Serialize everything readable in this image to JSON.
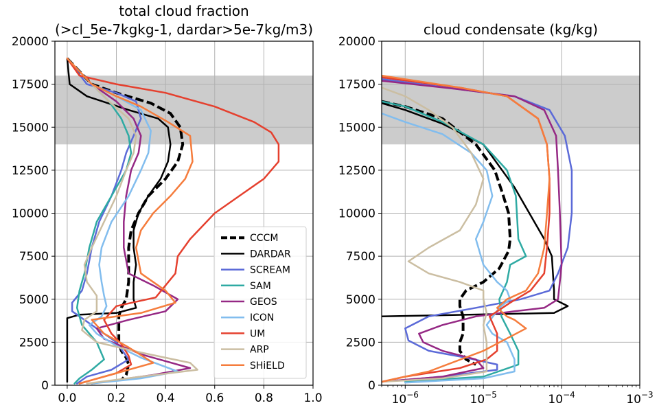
{
  "chart_data": [
    {
      "type": "line",
      "title": [
        "total cloud fraction",
        "(>cl_5e-7kgkg-1, dardar>5e-7kg/m3)"
      ],
      "xlabel": "",
      "ylabel": "",
      "xlim": [
        -0.05,
        1.0
      ],
      "ylim": [
        0,
        20000
      ],
      "xscale": "linear",
      "xticks": [
        0.0,
        0.2,
        0.4,
        0.6,
        0.8,
        1.0
      ],
      "xticklabels": [
        "0.0",
        "0.2",
        "0.4",
        "0.6",
        "0.8",
        "1.0"
      ],
      "yticks": [
        0,
        2500,
        5000,
        7500,
        10000,
        12500,
        15000,
        17500,
        20000
      ],
      "yticklabels": [
        "0",
        "2500",
        "5000",
        "7500",
        "10000",
        "12500",
        "15000",
        "17500",
        "20000"
      ],
      "grid": true,
      "shaded_band": [
        14000,
        18000
      ],
      "legend": "lower-right",
      "series": [
        {
          "name": "CCCM",
          "color": "#000000",
          "dashed": true,
          "width": 4,
          "x": [
            0.0,
            0.1,
            0.2,
            0.34,
            0.42,
            0.46,
            0.47,
            0.45,
            0.4,
            0.33,
            0.29,
            0.26,
            0.25,
            0.25,
            0.25,
            0.24,
            0.22,
            0.21,
            0.21,
            0.21,
            0.22,
            0.24,
            0.25,
            0.24,
            0.22
          ],
          "y": [
            19000,
            17500,
            17000,
            16400,
            15800,
            15000,
            14000,
            13000,
            12000,
            11000,
            10000,
            9000,
            8000,
            7000,
            6000,
            5000,
            4500,
            4000,
            3200,
            2500,
            2000,
            1600,
            1200,
            600,
            300
          ]
        },
        {
          "name": "DARDAR",
          "color": "#000000",
          "width": 2.5,
          "x": [
            0.0,
            0.01,
            0.08,
            0.25,
            0.37,
            0.41,
            0.42,
            0.41,
            0.38,
            0.33,
            0.29,
            0.27,
            0.27,
            0.28,
            0.27,
            0.27,
            0.28,
            0.2,
            0.05,
            0.0,
            0.0,
            0.0
          ],
          "y": [
            19000,
            17500,
            16800,
            16000,
            15500,
            15000,
            14000,
            13000,
            12000,
            11000,
            10000,
            9000,
            8000,
            7000,
            6000,
            5000,
            4500,
            4200,
            4100,
            3900,
            2000,
            200
          ]
        },
        {
          "name": "SCREAM",
          "color": "#5b6ad8",
          "width": 2.5,
          "x": [
            0.0,
            0.08,
            0.2,
            0.28,
            0.3,
            0.27,
            0.24,
            0.22,
            0.18,
            0.13,
            0.1,
            0.08,
            0.06,
            0.02,
            0.02,
            0.05,
            0.1,
            0.2,
            0.25,
            0.18,
            0.08,
            0.04
          ],
          "y": [
            19000,
            17500,
            17000,
            16500,
            15500,
            14500,
            13500,
            12500,
            11000,
            9500,
            8000,
            6500,
            5500,
            4800,
            4300,
            4000,
            3500,
            2500,
            1500,
            900,
            500,
            100
          ]
        },
        {
          "name": "SAM",
          "color": "#2eaaa3",
          "width": 2.5,
          "x": [
            0.0,
            0.1,
            0.17,
            0.22,
            0.25,
            0.26,
            0.24,
            0.18,
            0.12,
            0.09,
            0.07,
            0.05,
            0.04,
            0.06,
            0.12,
            0.15,
            0.1,
            0.05,
            0.03
          ],
          "y": [
            19000,
            17500,
            16500,
            15500,
            14500,
            13500,
            12500,
            11000,
            9500,
            8000,
            6500,
            5500,
            4500,
            3500,
            2500,
            1500,
            900,
            400,
            100
          ]
        },
        {
          "name": "GEOS",
          "color": "#952884",
          "width": 2.5,
          "x": [
            0.0,
            0.1,
            0.2,
            0.27,
            0.3,
            0.29,
            0.26,
            0.24,
            0.23,
            0.23,
            0.25,
            0.35,
            0.45,
            0.4,
            0.25,
            0.12,
            0.15,
            0.3,
            0.5,
            0.35,
            0.1
          ],
          "y": [
            19000,
            17500,
            16500,
            15500,
            14500,
            13500,
            12500,
            11000,
            9500,
            8000,
            6500,
            5800,
            5000,
            4300,
            3800,
            3300,
            2700,
            1800,
            1000,
            600,
            100
          ]
        },
        {
          "name": "ICON",
          "color": "#82bdee",
          "width": 2.5,
          "x": [
            0.0,
            0.1,
            0.2,
            0.3,
            0.34,
            0.33,
            0.3,
            0.25,
            0.18,
            0.14,
            0.13,
            0.14,
            0.15,
            0.16,
            0.14,
            0.09,
            0.12,
            0.2,
            0.3,
            0.45,
            0.3,
            0.1
          ],
          "y": [
            19000,
            17500,
            16800,
            16000,
            14800,
            13500,
            12500,
            11000,
            9500,
            8000,
            7000,
            6000,
            5200,
            4600,
            4000,
            3500,
            3000,
            2300,
            1600,
            800,
            400,
            100
          ]
        },
        {
          "name": "UM",
          "color": "#e5402e",
          "width": 2.5,
          "x": [
            0.0,
            0.05,
            0.2,
            0.4,
            0.6,
            0.76,
            0.83,
            0.86,
            0.86,
            0.8,
            0.7,
            0.6,
            0.5,
            0.45,
            0.44,
            0.4,
            0.36,
            0.2,
            0.15,
            0.18,
            0.22,
            0.25,
            0.26,
            0.2,
            0.05
          ],
          "y": [
            19000,
            18000,
            17500,
            17000,
            16200,
            15300,
            14700,
            14000,
            13000,
            12000,
            11000,
            10000,
            8500,
            7500,
            6500,
            5800,
            5100,
            4600,
            3800,
            3000,
            2400,
            1700,
            1200,
            700,
            100
          ]
        },
        {
          "name": "ARP",
          "color": "#cbbea2",
          "width": 2.5,
          "x": [
            0.0,
            0.1,
            0.17,
            0.25,
            0.28,
            0.27,
            0.24,
            0.2,
            0.15,
            0.1,
            0.07,
            0.08,
            0.12,
            0.12,
            0.07,
            0.06,
            0.12,
            0.3,
            0.5,
            0.53,
            0.3,
            0.08
          ],
          "y": [
            19000,
            17500,
            16500,
            15500,
            14500,
            13500,
            12500,
            11000,
            9500,
            8000,
            7000,
            6000,
            5200,
            4300,
            3800,
            3200,
            2500,
            1900,
            1300,
            900,
            500,
            100
          ]
        },
        {
          "name": "SHiELD",
          "color": "#f57c3c",
          "width": 2.5,
          "x": [
            0.0,
            0.1,
            0.2,
            0.3,
            0.41,
            0.5,
            0.51,
            0.48,
            0.42,
            0.35,
            0.3,
            0.28,
            0.3,
            0.4,
            0.44,
            0.3,
            0.1,
            0.15,
            0.25,
            0.35,
            0.2,
            0.05
          ],
          "y": [
            19000,
            17500,
            16800,
            16200,
            15300,
            14500,
            13000,
            12000,
            11000,
            10000,
            9000,
            8000,
            6500,
            5500,
            4800,
            4200,
            3800,
            3000,
            2200,
            1300,
            700,
            100
          ]
        }
      ]
    },
    {
      "type": "line",
      "title": [
        "cloud condensate (kg/kg)"
      ],
      "xlabel": "",
      "ylabel": "",
      "xlim": [
        5e-07,
        0.001
      ],
      "ylim": [
        0,
        20000
      ],
      "xscale": "log",
      "xticks": [
        1e-06,
        1e-05,
        0.0001,
        0.001
      ],
      "xticklabels": [
        [
          "10",
          "−6"
        ],
        [
          "10",
          "−5"
        ],
        [
          "10",
          "−4"
        ],
        [
          "10",
          "−3"
        ]
      ],
      "yticks": [
        0,
        2500,
        5000,
        7500,
        10000,
        12500,
        15000,
        17500,
        20000
      ],
      "yticklabels": [
        "0",
        "2500",
        "5000",
        "7500",
        "10000",
        "12500",
        "15000",
        "17500",
        "20000"
      ],
      "grid": true,
      "shaded_band": [
        14000,
        18000
      ],
      "series": [
        {
          "name": "CCCM",
          "color": "#000000",
          "dashed": true,
          "width": 4,
          "x": [
            5e-07,
            1e-06,
            3e-06,
            8e-06,
            1.4e-05,
            1.8e-05,
            2.1e-05,
            2.2e-05,
            2.1e-05,
            1.6e-05,
            1e-05,
            6e-06,
            5e-06,
            5e-06,
            5.5e-06,
            5.5e-06,
            5e-06,
            5e-06,
            6e-06,
            8e-06
          ],
          "y": [
            16500,
            16200,
            15500,
            14000,
            12500,
            11000,
            10000,
            8500,
            7800,
            6800,
            6000,
            5500,
            5000,
            4600,
            4000,
            3000,
            2500,
            2000,
            1500,
            1200
          ]
        },
        {
          "name": "DARDAR",
          "color": "#000000",
          "width": 2.5,
          "x": [
            5e-07,
            1e-06,
            3e-06,
            1e-05,
            2.5e-05,
            6e-05,
            7.5e-05,
            8e-05,
            8e-05,
            0.00012,
            8e-05,
            5e-07
          ],
          "y": [
            16400,
            16000,
            15200,
            14000,
            11500,
            8500,
            7500,
            5500,
            5000,
            4600,
            4200,
            4000
          ]
        },
        {
          "name": "SCREAM",
          "color": "#5b6ad8",
          "width": 2.5,
          "x": [
            5e-07,
            5e-06,
            2.5e-05,
            7e-05,
            0.00011,
            0.000135,
            0.000135,
            0.00012,
            9e-05,
            7e-05,
            3e-05,
            8e-06,
            2e-06,
            1e-06,
            1.1e-06,
            2e-06,
            6e-06,
            1.5e-05,
            1.5e-05,
            3e-06,
            5e-07
          ],
          "y": [
            17800,
            17200,
            16800,
            16000,
            14500,
            12500,
            10000,
            8000,
            6500,
            5500,
            5000,
            4500,
            4000,
            3300,
            2600,
            2000,
            1600,
            1200,
            900,
            500,
            200
          ]
        },
        {
          "name": "SAM",
          "color": "#2eaaa3",
          "width": 2.5,
          "x": [
            5e-07,
            1e-06,
            3e-06,
            1e-05,
            2e-05,
            2.6e-05,
            2.8e-05,
            3.5e-05,
            2.2e-05,
            2e-05,
            1.6e-05,
            1.7e-05,
            2.2e-05,
            2.8e-05,
            2.8e-05,
            1e-05,
            1e-06
          ],
          "y": [
            16500,
            16200,
            15300,
            14000,
            12500,
            11000,
            8500,
            7500,
            7000,
            6000,
            5000,
            4000,
            3000,
            2000,
            1200,
            500,
            200
          ]
        },
        {
          "name": "GEOS",
          "color": "#952884",
          "width": 2.5,
          "x": [
            5e-07,
            5e-06,
            2.5e-05,
            6e-05,
            8.5e-05,
            9e-05,
            9.5e-05,
            0.0001,
            9e-05,
            6e-05,
            2.5e-05,
            8e-06,
            3e-06,
            1.5e-06,
            1.7e-06,
            3e-06,
            8e-06,
            1e-05,
            3e-06,
            5e-07
          ],
          "y": [
            17700,
            17200,
            16800,
            16000,
            14500,
            12500,
            10000,
            7000,
            5000,
            4500,
            4300,
            4000,
            3500,
            3000,
            2500,
            2000,
            1500,
            1000,
            500,
            200
          ]
        },
        {
          "name": "ICON",
          "color": "#82bdee",
          "width": 2.5,
          "x": [
            5e-07,
            1e-06,
            3e-06,
            7e-06,
            1.1e-05,
            1.3e-05,
            1e-05,
            8e-06,
            1e-05,
            1.5e-05,
            2e-05,
            2.2e-05,
            1.6e-05,
            1.1e-05,
            1.3e-05,
            2e-05,
            2.5e-05,
            2.5e-05,
            1e-05,
            1e-06
          ],
          "y": [
            15800,
            15300,
            14600,
            13500,
            12500,
            11000,
            9500,
            8500,
            7000,
            6000,
            5500,
            5000,
            4500,
            3500,
            3000,
            2500,
            1500,
            800,
            400,
            150
          ]
        },
        {
          "name": "UM",
          "color": "#e5402e",
          "width": 2.5,
          "x": [
            5e-07,
            5e-06,
            2e-05,
            5e-05,
            6.5e-05,
            7e-05,
            7e-05,
            6.5e-05,
            6e-05,
            4e-05,
            2.2e-05,
            1.2e-05,
            1.5e-05,
            1.5e-05,
            1.1e-05,
            5e-06,
            1e-06,
            5e-07
          ],
          "y": [
            17900,
            17300,
            16800,
            15500,
            14000,
            12000,
            10000,
            8000,
            6500,
            5500,
            4800,
            4000,
            3000,
            2000,
            1500,
            1000,
            500,
            200
          ]
        },
        {
          "name": "ARP",
          "color": "#cbbea2",
          "width": 2.5,
          "x": [
            5e-07,
            1e-06,
            2e-06,
            4e-06,
            7e-06,
            1e-05,
            8e-06,
            5e-06,
            2e-06,
            1.1e-06,
            2e-06,
            5e-06,
            1e-05,
            1e-05,
            1.1e-05,
            1e-05,
            1.1e-05,
            1.1e-05,
            1.1e-05,
            3e-06,
            5e-07
          ],
          "y": [
            17300,
            16800,
            16000,
            15000,
            13500,
            12000,
            10500,
            9000,
            8000,
            7200,
            6500,
            6000,
            5500,
            5000,
            4200,
            3500,
            2500,
            1500,
            800,
            400,
            200
          ]
        },
        {
          "name": "SHiELD",
          "color": "#f57c3c",
          "width": 2.5,
          "x": [
            5e-07,
            5e-06,
            2e-05,
            5e-05,
            6.5e-05,
            7e-05,
            6.5e-05,
            6e-05,
            5e-05,
            3.5e-05,
            2e-05,
            1.5e-05,
            2e-05,
            2.5e-05,
            3.5e-05,
            1e-05,
            2e-06,
            5e-07
          ],
          "y": [
            18000,
            17300,
            16800,
            15500,
            14000,
            12000,
            10000,
            8000,
            6500,
            5500,
            5000,
            4500,
            4000,
            3800,
            3300,
            2000,
            800,
            200
          ]
        }
      ]
    }
  ]
}
